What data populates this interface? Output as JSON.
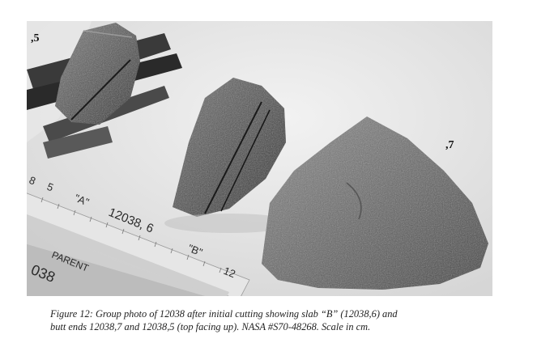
{
  "figure": {
    "sample_labels": {
      "label_5": ",5",
      "label_7": ",7"
    },
    "ruler_markings": [
      "8",
      "5",
      "\"A\"",
      "12038, 6",
      "\"B\"",
      "12"
    ],
    "handwritten_notes": [
      "PARENT",
      "038"
    ],
    "caption_line_1": "Figure 12:  Group photo of 12038 after initial cutting showing slab “B” (12038,6) and",
    "caption_line_2": "butt ends 12038,7 and 12038,5 (top facing up).  NASA #S70-48268.  Scale in cm."
  }
}
